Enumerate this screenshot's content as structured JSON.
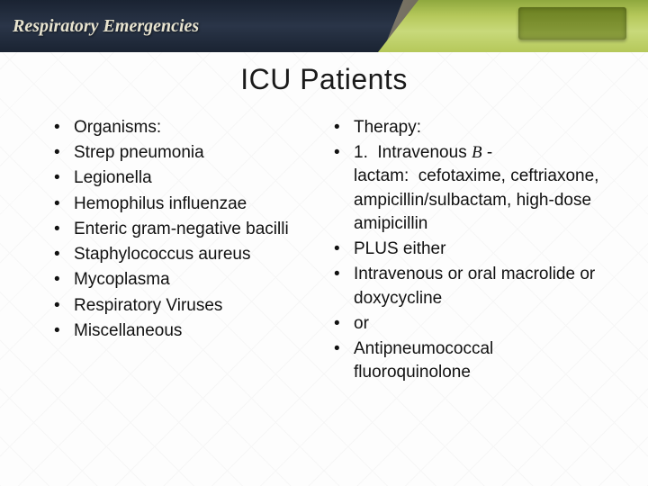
{
  "header": {
    "title": "Respiratory Emergencies"
  },
  "slide": {
    "title": "ICU Patients"
  },
  "left_list": [
    "Organisms:",
    "Strep pneumonia",
    "Legionella",
    "Hemophilus influenzae",
    "Enteric gram-negative bacilli",
    "Staphylococcus aureus",
    "Mycoplasma",
    "Respiratory Viruses",
    "Miscellaneous"
  ],
  "right_list": [
    "Therapy:",
    "1.  Intravenous B - lactam:  cefotaxime, ceftriaxone, ampicillin/sulbactam, high-dose amipicillin",
    "PLUS either",
    "Intravenous or oral macrolide or doxycycline",
    "or",
    "Antipneumococcal fluoroquinolone"
  ],
  "colors": {
    "header_dark": "#1a2332",
    "header_green": "#b5c85a",
    "text": "#111111",
    "background": "#ffffff"
  },
  "typography": {
    "title_fontsize": 32,
    "body_fontsize": 19,
    "header_fontsize": 20
  }
}
